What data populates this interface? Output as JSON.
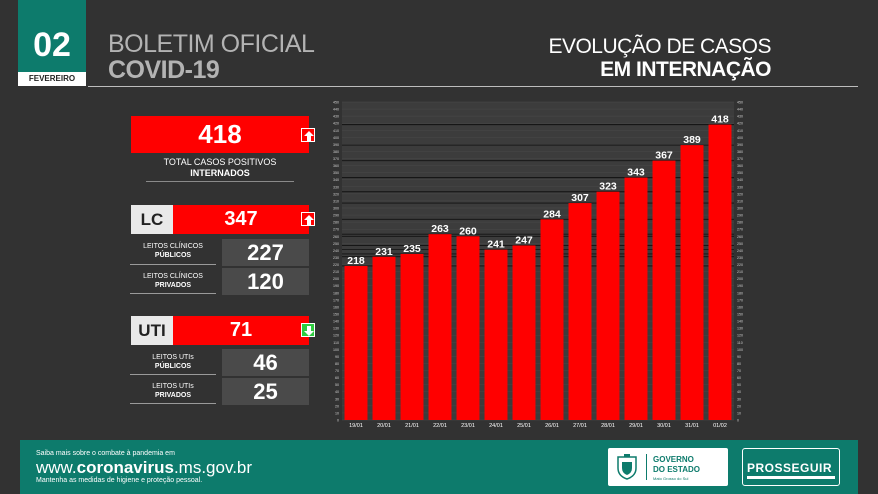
{
  "header": {
    "day": "02",
    "month": "FEVEREIRO",
    "title_line1": "BOLETIM OFICIAL",
    "title_line2": "COVID-19",
    "subtitle_line1": "EVOLUÇÃO DE CASOS",
    "subtitle_line2": "EM INTERNAÇÃO"
  },
  "summary": {
    "total_value": "418",
    "total_label_line1": "TOTAL CASOS POSITIVOS",
    "total_label_line2": "INTERNADOS",
    "total_trend": "up",
    "lc": {
      "tag": "LC",
      "value": "347",
      "trend": "up",
      "public_label_line1": "LEITOS CLÍNICOS",
      "public_label_line2": "PÚBLICOS",
      "public_value": "227",
      "private_label_line1": "LEITOS CLÍNICOS",
      "private_label_line2": "PRIVADOS",
      "private_value": "120"
    },
    "uti": {
      "tag": "UTI",
      "value": "71",
      "trend": "down",
      "public_label_line1": "LEITOS UTIs",
      "public_label_line2": "PÚBLICOS",
      "public_value": "46",
      "private_label_line1": "LEITOS UTIs",
      "private_label_line2": "PRIVADOS",
      "private_value": "25"
    }
  },
  "chart_data": {
    "type": "bar",
    "categories": [
      "19/01",
      "20/01",
      "21/01",
      "22/01",
      "23/01",
      "24/01",
      "25/01",
      "26/01",
      "27/01",
      "28/01",
      "29/01",
      "30/01",
      "31/01",
      "01/02"
    ],
    "values": [
      218,
      231,
      235,
      263,
      260,
      241,
      247,
      284,
      307,
      323,
      343,
      367,
      389,
      418
    ],
    "ylim": [
      0,
      450
    ],
    "ytick_step": 10,
    "bar_color": "#ff0000",
    "grid": true
  },
  "footer": {
    "small_text": "Saiba mais sobre o combate à pandemia em",
    "url_prefix": "www.",
    "url_bold": "coronavirus",
    "url_suffix": ".ms.gov.br",
    "small_text2": "Mantenha as medidas de higiene e proteção pessoal.",
    "gov_line1": "GOVERNO",
    "gov_line2": "DO ESTADO",
    "gov_line3": "Mato Grosso do Sul",
    "prosseguir": "PROSSEGUIR"
  },
  "colors": {
    "accent": "#0d7b6c",
    "red": "#ff0000",
    "green": "#2ecc40",
    "background": "#323232"
  }
}
